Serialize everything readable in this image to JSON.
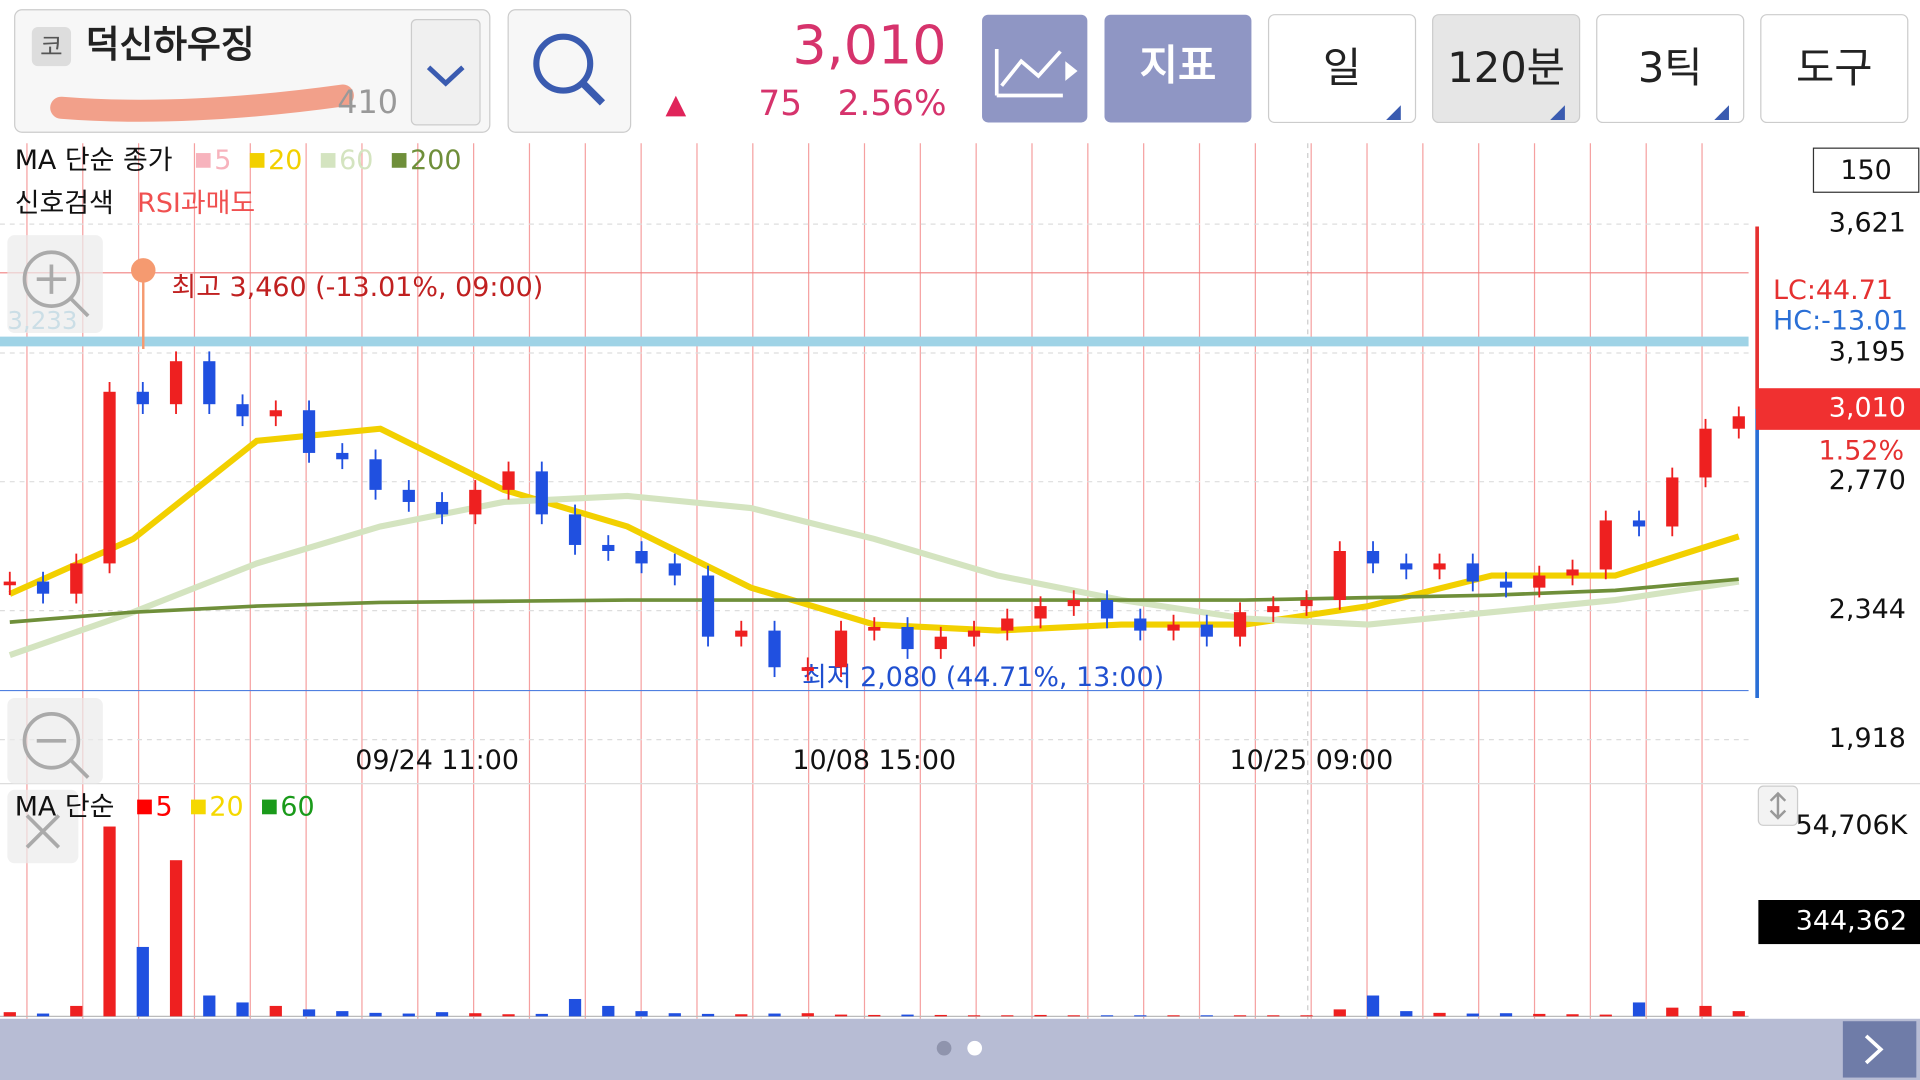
{
  "header": {
    "market_badge": "코",
    "stock_name": "덕신하우징",
    "code_partial": "410",
    "price": "3,010",
    "change_arrow": "▲",
    "change": "75",
    "change_pct": "2.56%"
  },
  "toolbar": {
    "buttons": [
      "지표",
      "일",
      "120분",
      "3틱",
      "도구"
    ]
  },
  "price_chart": {
    "legend_title": "MA 단순 종가",
    "ma_legend": [
      {
        "name": "5",
        "color": "#f7b3bd"
      },
      {
        "name": "20",
        "color": "#f2d000"
      },
      {
        "name": "60",
        "color": "#d4e4c0"
      },
      {
        "name": "200",
        "color": "#6f8f3a"
      }
    ],
    "signal_label": "신호검색",
    "signal_name": "RSI과매도",
    "count_box": "150",
    "ylim": [
      1918,
      3621
    ],
    "yticks": [
      {
        "value": 3621,
        "label": "3,621"
      },
      {
        "value": 3195,
        "label": "3,195"
      },
      {
        "value": 2770,
        "label": "2,770"
      },
      {
        "value": 2344,
        "label": "2,344"
      },
      {
        "value": 1918,
        "label": "1,918"
      }
    ],
    "xticks": [
      "09/24 11:00",
      "10/08 15:00",
      "10/25 09:00"
    ],
    "crosshair": {
      "value": 3233,
      "label": "3,233"
    },
    "high": {
      "value": 3460,
      "label": "최고 3,460 (-13.01%, 09:00)"
    },
    "low": {
      "value": 2080,
      "label": "최저 2,080 (44.71%, 13:00)"
    },
    "lc": "LC:44.71",
    "hc": "HC:-13.01",
    "current": {
      "value": 3010,
      "label": "3,010"
    },
    "current_pct": "1.52%",
    "closes": [
      2440,
      2400,
      2500,
      3067,
      3026,
      3168,
      3026,
      2986,
      3006,
      2865,
      2844,
      2743,
      2703,
      2662,
      2743,
      2804,
      2662,
      2561,
      2541,
      2500,
      2460,
      2258,
      2278,
      2157,
      2157,
      2278,
      2290,
      2217,
      2258,
      2278,
      2318,
      2359,
      2379,
      2318,
      2278,
      2298,
      2258,
      2339,
      2359,
      2379,
      2541,
      2500,
      2480,
      2500,
      2440,
      2420,
      2460,
      2480,
      2642,
      2622,
      2784,
      2945,
      2986
    ],
    "ma_lines": [
      {
        "name": "20",
        "color": "#f2d000",
        "values": [
          2399,
          2581,
          2905,
          2945,
          2743,
          2622,
          2420,
          2298,
          2278,
          2298,
          2298,
          2359,
          2460,
          2460,
          2589
        ]
      },
      {
        "name": "60",
        "color": "#d4e4c0",
        "values": [
          2197,
          2339,
          2500,
          2622,
          2703,
          2723,
          2683,
          2581,
          2460,
          2379,
          2318,
          2298,
          2339,
          2379,
          2440
        ]
      },
      {
        "name": "200",
        "color": "#6f8f3a",
        "values": [
          2306,
          2339,
          2359,
          2371,
          2375,
          2379,
          2379,
          2379,
          2379,
          2379,
          2379,
          2387,
          2395,
          2411,
          2448
        ]
      }
    ]
  },
  "volume_chart": {
    "legend_title": "MA 단순",
    "ma_legend": [
      {
        "name": "5",
        "color": "#ff0000"
      },
      {
        "name": "20",
        "color": "#f5d800"
      },
      {
        "name": "60",
        "color": "#1a9a1a"
      }
    ],
    "ylim": [
      0,
      54706
    ],
    "max_tick": {
      "value": 54706,
      "label": "54,706K"
    },
    "current_label": "344,362",
    "volumes": [
      1200,
      800,
      3000,
      54706,
      20000,
      45000,
      6000,
      4000,
      3000,
      2000,
      1500,
      1000,
      800,
      1200,
      900,
      600,
      700,
      5000,
      3000,
      1500,
      900,
      700,
      600,
      800,
      900,
      500,
      400,
      500,
      400,
      300,
      300,
      400,
      300,
      300,
      300,
      300,
      300,
      300,
      300,
      300,
      2000,
      6000,
      1500,
      1000,
      800,
      900,
      700,
      600,
      500,
      4000,
      2500,
      3000,
      1500
    ]
  }
}
